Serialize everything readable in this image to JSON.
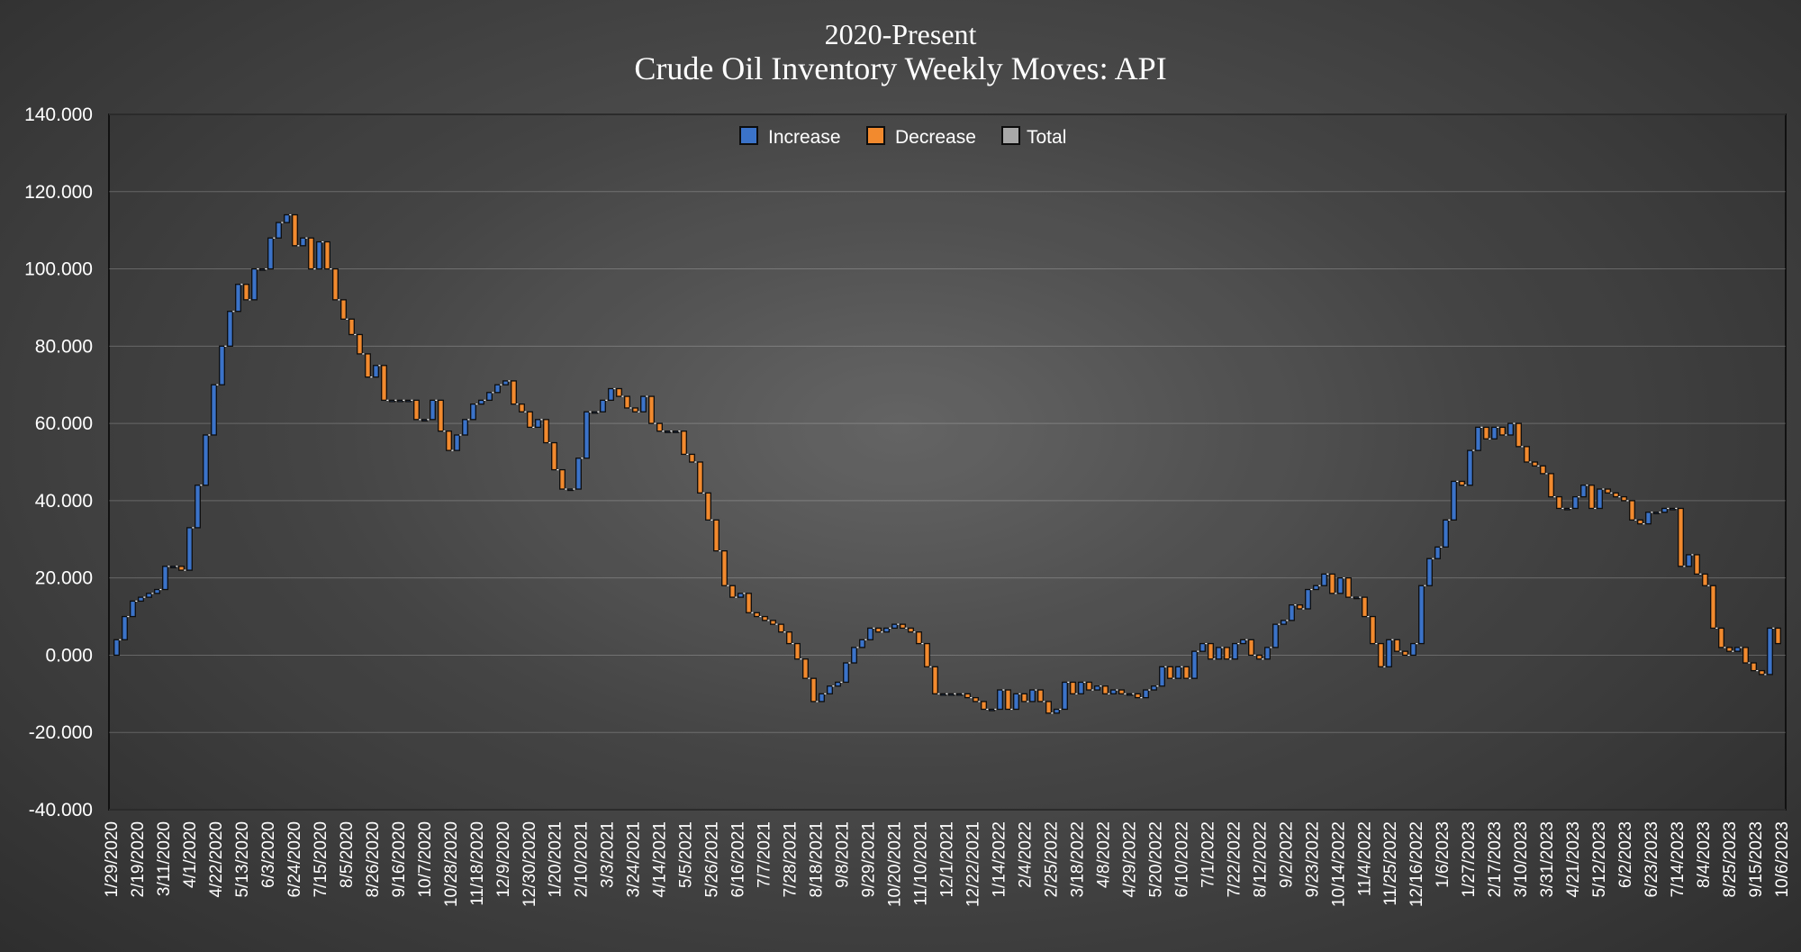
{
  "chart_data": {
    "type": "bar",
    "subtype": "waterfall-step",
    "title": "2020-Present",
    "subtitle": "Crude Oil Inventory Weekly Moves:  API",
    "ylim": [
      -40,
      140
    ],
    "y_ticks": [
      "140.000",
      "120.000",
      "100.000",
      "80.000",
      "60.000",
      "40.000",
      "20.000",
      "0.000",
      "-20.000",
      "-40.000"
    ],
    "x_tick_labels": [
      "1/29/2020",
      "2/19/2020",
      "3/11/2020",
      "4/1/2020",
      "4/22/2020",
      "5/13/2020",
      "6/3/2020",
      "6/24/2020",
      "7/15/2020",
      "8/5/2020",
      "8/26/2020",
      "9/16/2020",
      "10/7/2020",
      "10/28/2020",
      "11/18/2020",
      "12/9/2020",
      "12/30/2020",
      "1/20/2021",
      "2/10/2021",
      "3/3/2021",
      "3/24/2021",
      "4/14/2021",
      "5/5/2021",
      "5/26/2021",
      "6/16/2021",
      "7/7/2021",
      "7/28/2021",
      "8/18/2021",
      "9/8/2021",
      "9/29/2021",
      "10/20/2021",
      "11/10/2021",
      "12/1/2021",
      "12/22/2021",
      "1/14/2022",
      "2/4/2022",
      "2/25/2022",
      "3/18/2022",
      "4/8/2022",
      "4/29/2022",
      "5/20/2022",
      "6/10/2022",
      "7/1/2022",
      "7/22/2022",
      "8/12/2022",
      "9/2/2022",
      "9/23/2022",
      "10/14/2022",
      "11/4/2022",
      "11/25/2022",
      "12/16/2022",
      "1/6/2023",
      "1/27/2023",
      "2/17/2023",
      "3/10/2023",
      "3/31/2023",
      "4/21/2023",
      "5/12/2023",
      "6/2/2023",
      "6/23/2023",
      "7/14/2023",
      "8/4/2023",
      "8/25/2023",
      "9/15/2023",
      "10/6/2023"
    ],
    "legend": [
      {
        "name": "Increase",
        "color": "#3b73c9"
      },
      {
        "name": "Decrease",
        "color": "#f28a2e"
      },
      {
        "name": "Total",
        "color": "#a8a8a8"
      }
    ],
    "legend_position": "top-center",
    "grid": true,
    "cumulative_levels": [
      0,
      4,
      10,
      14,
      15,
      16,
      17,
      23,
      23,
      22,
      33,
      44,
      57,
      70,
      80,
      89,
      96,
      92,
      100,
      100,
      108,
      112,
      114,
      106,
      108,
      100,
      107,
      100,
      92,
      87,
      83,
      78,
      72,
      75,
      66,
      66,
      66,
      66,
      61,
      61,
      66,
      58,
      53,
      57,
      61,
      65,
      66,
      68,
      70,
      71,
      65,
      63,
      59,
      61,
      55,
      48,
      43,
      43,
      51,
      63,
      63,
      66,
      69,
      67,
      64,
      63,
      67,
      60,
      58,
      58,
      58,
      52,
      50,
      42,
      35,
      27,
      18,
      15,
      16,
      11,
      10,
      9,
      8,
      6,
      3,
      -1,
      -6,
      -12,
      -10,
      -8,
      -7,
      -2,
      2,
      4,
      7,
      6,
      7,
      8,
      7,
      6,
      3,
      -3,
      -10,
      -10,
      -10,
      -10,
      -11,
      -12,
      -14,
      -14,
      -9,
      -14,
      -10,
      -12,
      -9,
      -12,
      -15,
      -14,
      -7,
      -10,
      -7,
      -9,
      -8,
      -10,
      -9,
      -10,
      -10,
      -11,
      -9,
      -8,
      -3,
      -6,
      -3,
      -6,
      1,
      3,
      -1,
      2,
      -1,
      3,
      4,
      0,
      -1,
      2,
      8,
      9,
      13,
      12,
      17,
      18,
      21,
      16,
      20,
      15,
      15,
      10,
      3,
      -3,
      4,
      1,
      0,
      3,
      18,
      25,
      28,
      35,
      45,
      44,
      53,
      59,
      56,
      59,
      57,
      60,
      54,
      50,
      49,
      47,
      41,
      38,
      38,
      41,
      44,
      38,
      43,
      42,
      41,
      40,
      35,
      34,
      37,
      37,
      38,
      38,
      23,
      26,
      21,
      18,
      7,
      2,
      1,
      2,
      -2,
      -4,
      -5,
      7,
      3
    ]
  }
}
